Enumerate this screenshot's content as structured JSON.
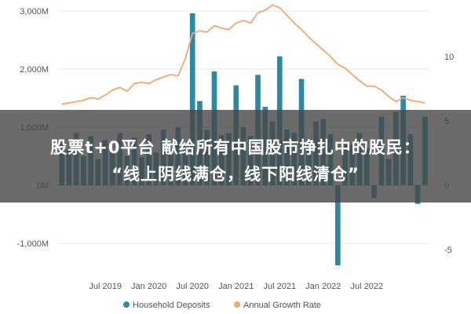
{
  "headline": {
    "line1": "股票t+0平台 献给所有中国股市挣扎中的股民：",
    "line2": "“线上阴线满仓，线下阳线清仓”"
  },
  "chart_data": {
    "type": "bar",
    "title": "",
    "xlabel": "",
    "ylabel": "",
    "ylim": [
      -1400,
      3000
    ],
    "y2lim": [
      -7,
      14
    ],
    "y_ticks": [
      "3,000M",
      "2,000M",
      "1,000M",
      "0M",
      "-1,000M"
    ],
    "y_tick_values": [
      3000,
      2000,
      1000,
      0,
      -1000
    ],
    "y2_ticks": [
      "10",
      "5",
      "0",
      "-5"
    ],
    "y2_tick_values": [
      10,
      5,
      0,
      -5
    ],
    "x_ticks": [
      "Jul 2019",
      "Jan 2020",
      "Jul 2020",
      "Jan 2021",
      "Jul 2021",
      "Jan 2022",
      "Jul 2022"
    ],
    "x_tick_index": [
      6,
      12,
      18,
      24,
      30,
      36,
      42
    ],
    "grid": true,
    "legend_position": "bottom",
    "series": [
      {
        "name": "Household Deposits",
        "kind": "bar",
        "axis": "left",
        "color": "#2a8aa5",
        "values": [
          720,
          600,
          900,
          500,
          850,
          450,
          780,
          580,
          900,
          500,
          820,
          480,
          880,
          560,
          960,
          620,
          1000,
          700,
          2960,
          1450,
          950,
          1960,
          860,
          900,
          1720,
          1000,
          850,
          1900,
          1350,
          1100,
          2220,
          960,
          900,
          1830,
          800,
          1100,
          1140,
          880,
          -1380,
          700,
          700,
          900,
          640,
          -220,
          1180,
          450,
          1260,
          1540,
          880,
          -320,
          1180
        ]
      },
      {
        "name": "Annual Growth Rate",
        "kind": "line",
        "axis": "right",
        "color": "#f5a56e",
        "values": [
          6.3,
          6.4,
          6.5,
          6.6,
          6.8,
          6.7,
          7.0,
          7.4,
          7.6,
          7.3,
          7.9,
          8.0,
          7.9,
          8.2,
          8.4,
          8.6,
          8.5,
          9.8,
          11.8,
          12.0,
          11.9,
          12.4,
          12.2,
          12.1,
          12.6,
          12.8,
          12.6,
          13.4,
          13.6,
          14.0,
          13.8,
          13.2,
          12.6,
          12.1,
          11.5,
          11.0,
          10.5,
          10.0,
          9.4,
          9.1,
          8.6,
          8.1,
          7.7,
          7.7,
          7.4,
          6.9,
          6.5,
          6.8,
          6.6,
          6.5,
          6.4
        ]
      }
    ]
  }
}
